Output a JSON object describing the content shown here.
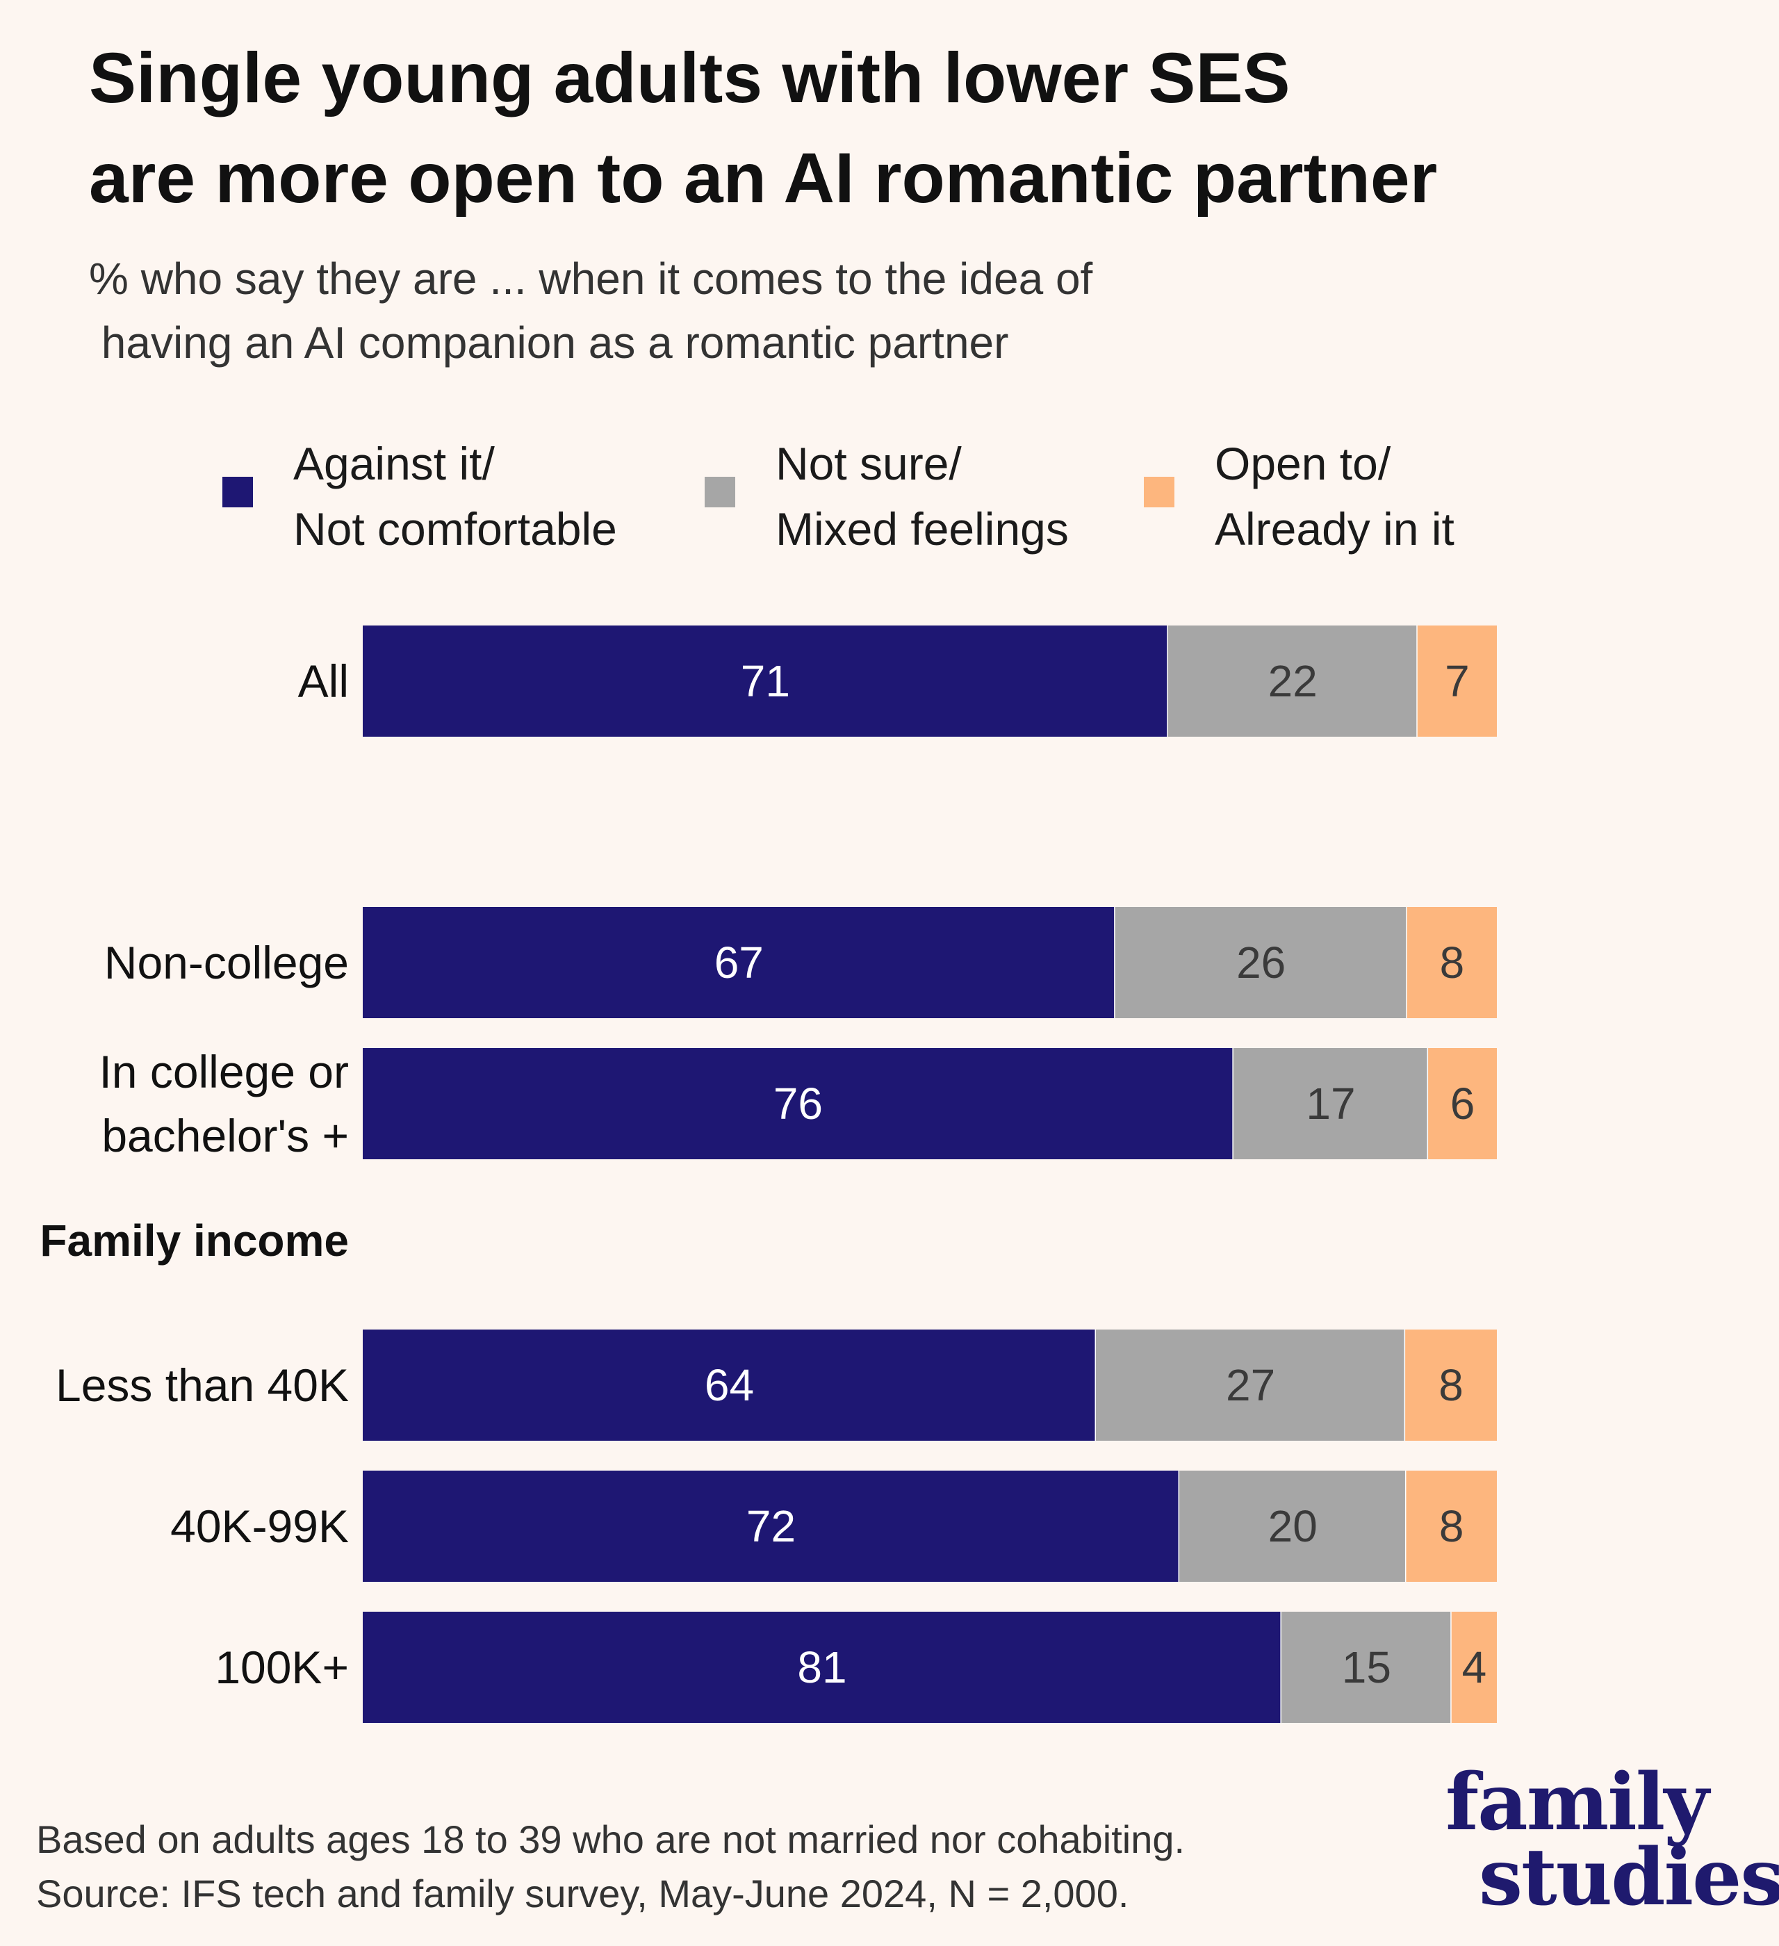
{
  "title_line1": "Single young adults with lower SES",
  "title_line2": "are more open to an AI romantic partner",
  "subtitle_line1": "% who say they are ... when it comes to the idea of",
  "subtitle_line2": " having an AI companion as a romantic partner",
  "legend": [
    {
      "line1": "Against it/",
      "line2": "Not comfortable",
      "color": "#1e1773"
    },
    {
      "line1": "Not sure/",
      "line2": "Mixed feelings",
      "color": "#a6a6a6"
    },
    {
      "line1": "Open to/",
      "line2": "Already in it",
      "color": "#fdb67e"
    }
  ],
  "chart_data": {
    "type": "bar",
    "orientation": "horizontal",
    "stacked": true,
    "unit": "%",
    "title": "Single young adults with lower SES are more open to an AI romantic partner",
    "section_labels": [
      "Family income"
    ],
    "categories": [
      [
        "All"
      ],
      [
        "Non-college"
      ],
      [
        "In college or",
        "bachelor's +"
      ],
      [
        "Less than 40K"
      ],
      [
        "40K-99K"
      ],
      [
        "100K+"
      ]
    ],
    "series": [
      {
        "name": "Against it/Not comfortable",
        "color": "#1e1773",
        "label_color": "#ffffff",
        "values": [
          71,
          67,
          76,
          64,
          72,
          81
        ]
      },
      {
        "name": "Not sure/Mixed feelings",
        "color": "#a6a6a6",
        "label_color": "#3a3a3a",
        "values": [
          22,
          26,
          17,
          27,
          20,
          15
        ]
      },
      {
        "name": "Open to/Already in it",
        "color": "#fdb67e",
        "label_color": "#3a3a3a",
        "values": [
          7,
          8,
          6,
          8,
          8,
          4
        ]
      }
    ]
  },
  "footer_line1": "Based on adults ages 18 to 39 who are not married nor cohabiting.",
  "footer_line2": "Source: IFS tech and family survey, May-June 2024, N = 2,000.",
  "logo_line1": "family",
  "logo_line2": "studies"
}
